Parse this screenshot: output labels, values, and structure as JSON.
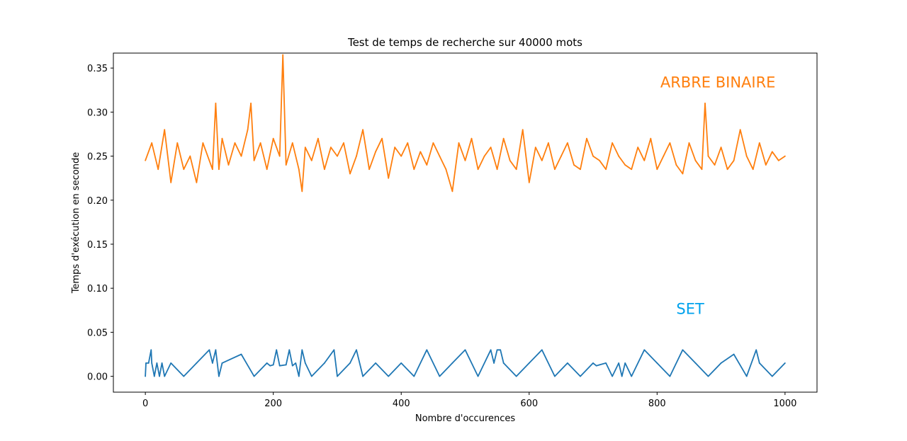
{
  "chart_data": {
    "type": "line",
    "title": "Test de temps de recherche sur 40000 mots",
    "xlabel": "Nombre d'occurences",
    "ylabel": "Temps d'exécution en seconde",
    "xlim": [
      -50,
      1050
    ],
    "ylim": [
      -0.018,
      0.367
    ],
    "x_ticks": [
      0,
      200,
      400,
      600,
      800,
      1000
    ],
    "x_tick_labels": [
      "0",
      "200",
      "400",
      "600",
      "800",
      "1000"
    ],
    "y_ticks": [
      0.0,
      0.05,
      0.1,
      0.15,
      0.2,
      0.25,
      0.3,
      0.35
    ],
    "y_tick_labels": [
      "0.00",
      "0.05",
      "0.10",
      "0.15",
      "0.20",
      "0.25",
      "0.30",
      "0.35"
    ],
    "grid": false,
    "annotations": [
      {
        "text": "ARBRE BINAIRE",
        "x": 805,
        "y": 0.328,
        "color": "#ff7f0e"
      },
      {
        "text": "SET",
        "x": 830,
        "y": 0.071,
        "color": "#00a2ed"
      }
    ],
    "series": [
      {
        "color": "#ff7f0e",
        "x": [
          0,
          10,
          20,
          30,
          40,
          50,
          60,
          70,
          80,
          90,
          100,
          105,
          110,
          115,
          120,
          130,
          140,
          150,
          160,
          165,
          170,
          180,
          190,
          200,
          210,
          215,
          220,
          230,
          240,
          245,
          250,
          260,
          270,
          280,
          290,
          300,
          310,
          320,
          330,
          340,
          350,
          360,
          370,
          380,
          390,
          400,
          410,
          420,
          430,
          440,
          450,
          460,
          470,
          480,
          490,
          500,
          510,
          520,
          530,
          540,
          550,
          560,
          570,
          580,
          590,
          600,
          610,
          620,
          630,
          640,
          650,
          660,
          670,
          680,
          690,
          700,
          710,
          720,
          730,
          740,
          750,
          760,
          770,
          780,
          790,
          800,
          810,
          820,
          830,
          840,
          850,
          860,
          870,
          875,
          880,
          890,
          900,
          910,
          920,
          930,
          940,
          950,
          960,
          970,
          980,
          990,
          1000
        ],
        "values": [
          0.245,
          0.265,
          0.235,
          0.28,
          0.22,
          0.265,
          0.235,
          0.25,
          0.22,
          0.265,
          0.245,
          0.235,
          0.31,
          0.235,
          0.27,
          0.24,
          0.265,
          0.25,
          0.28,
          0.31,
          0.245,
          0.265,
          0.235,
          0.27,
          0.25,
          0.365,
          0.24,
          0.265,
          0.235,
          0.21,
          0.26,
          0.245,
          0.27,
          0.235,
          0.26,
          0.25,
          0.265,
          0.23,
          0.25,
          0.28,
          0.235,
          0.255,
          0.27,
          0.225,
          0.26,
          0.25,
          0.265,
          0.235,
          0.255,
          0.24,
          0.265,
          0.25,
          0.235,
          0.21,
          0.265,
          0.245,
          0.27,
          0.235,
          0.25,
          0.26,
          0.235,
          0.27,
          0.245,
          0.235,
          0.28,
          0.22,
          0.26,
          0.245,
          0.265,
          0.235,
          0.25,
          0.265,
          0.24,
          0.235,
          0.27,
          0.25,
          0.245,
          0.235,
          0.265,
          0.25,
          0.24,
          0.235,
          0.26,
          0.245,
          0.27,
          0.235,
          0.25,
          0.265,
          0.24,
          0.23,
          0.265,
          0.245,
          0.235,
          0.31,
          0.25,
          0.24,
          0.26,
          0.235,
          0.245,
          0.28,
          0.25,
          0.235,
          0.265,
          0.24,
          0.255,
          0.245,
          0.25
        ]
      },
      {
        "color": "#1f77b4",
        "x": [
          0,
          1,
          5,
          9,
          10,
          14,
          18,
          22,
          26,
          30,
          40,
          60,
          80,
          100,
          105,
          110,
          115,
          120,
          150,
          170,
          190,
          195,
          200,
          205,
          210,
          220,
          225,
          230,
          235,
          240,
          245,
          250,
          260,
          280,
          295,
          300,
          320,
          330,
          340,
          360,
          380,
          400,
          420,
          440,
          460,
          480,
          500,
          520,
          540,
          545,
          550,
          555,
          560,
          580,
          600,
          620,
          640,
          660,
          680,
          700,
          705,
          710,
          720,
          730,
          740,
          745,
          750,
          760,
          780,
          800,
          820,
          840,
          860,
          880,
          900,
          920,
          940,
          955,
          960,
          980,
          1000
        ],
        "values": [
          0.0,
          0.015,
          0.015,
          0.03,
          0.015,
          0.0,
          0.015,
          0.0,
          0.015,
          0.0,
          0.015,
          0.0,
          0.015,
          0.03,
          0.015,
          0.03,
          0.0,
          0.015,
          0.025,
          0.0,
          0.015,
          0.012,
          0.013,
          0.03,
          0.012,
          0.013,
          0.03,
          0.012,
          0.015,
          0.0,
          0.03,
          0.015,
          0.0,
          0.015,
          0.03,
          0.0,
          0.015,
          0.03,
          0.0,
          0.015,
          0.0,
          0.015,
          0.0,
          0.03,
          0.0,
          0.015,
          0.03,
          0.0,
          0.03,
          0.015,
          0.03,
          0.03,
          0.015,
          0.0,
          0.015,
          0.03,
          0.0,
          0.015,
          0.0,
          0.015,
          0.012,
          0.013,
          0.015,
          0.0,
          0.015,
          0.0,
          0.015,
          0.0,
          0.03,
          0.015,
          0.0,
          0.03,
          0.015,
          0.0,
          0.015,
          0.025,
          0.0,
          0.03,
          0.015,
          0.0,
          0.015
        ]
      }
    ]
  }
}
